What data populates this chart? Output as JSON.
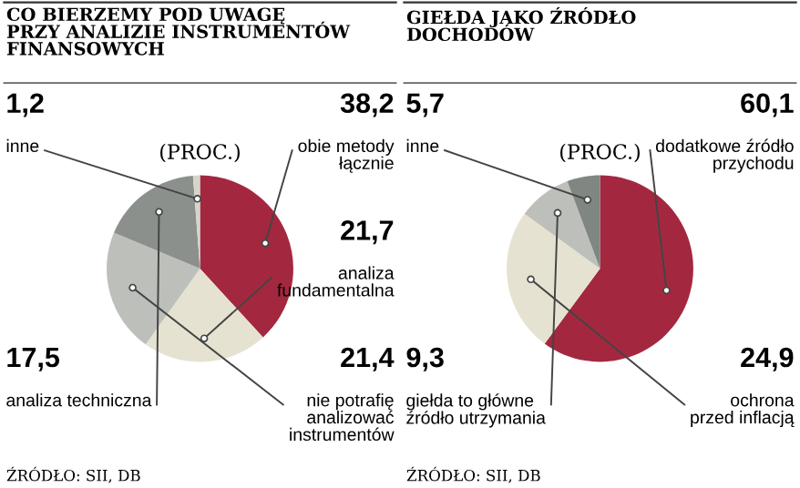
{
  "chart_data": [
    {
      "type": "pie",
      "title": "CO BIERZEMY POD UWAGĘ\nPRZY ANALIZIE INSTRUMENTÓW\nFINANSOWYCH",
      "subtitle": "(PROC.)",
      "categories": [
        "obie metody\nłącznie",
        "analiza\nfundamentalna",
        "nie potrafię\nanalizować\ninstrumentów",
        "analiza techniczna",
        "inne"
      ],
      "values": [
        38.2,
        21.7,
        21.4,
        17.5,
        1.2
      ],
      "value_labels": [
        "38,2",
        "21,7",
        "21,4",
        "17,5",
        "1,2"
      ],
      "colors": [
        "#a3283f",
        "#e5e2d1",
        "#bdbfbb",
        "#8b908c",
        "#d6d5cc"
      ],
      "annotations": [
        "ŹRÓDŁO: SII, DB"
      ]
    },
    {
      "type": "pie",
      "title": "GIEŁDA JAKO ŹRÓDŁO\nDOCHODÓW",
      "subtitle": "(PROC.)",
      "categories": [
        "dodatkowe źródło\nprzychodu",
        "ochrona\nprzed inflacją",
        "giełda to główne\nźródło utrzymania",
        "inne"
      ],
      "values": [
        60.1,
        24.9,
        9.3,
        5.7
      ],
      "value_labels": [
        "60,1",
        "24,9",
        "9,3",
        "5,7"
      ],
      "colors": [
        "#a3283f",
        "#e5e2d1",
        "#bdbfbb",
        "#808682"
      ],
      "annotations": [
        "ŹRÓDŁO: SII, DB"
      ]
    }
  ]
}
